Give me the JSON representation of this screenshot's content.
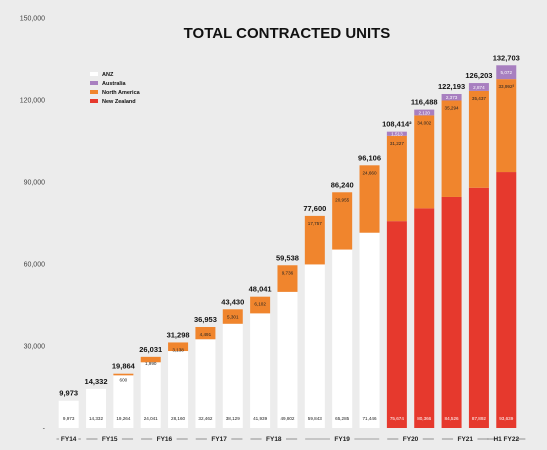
{
  "chart_data": {
    "type": "bar",
    "stacked": true,
    "title": "TOTAL CONTRACTED UNITS",
    "ylim": [
      0,
      150000
    ],
    "yticks": [
      0,
      30000,
      60000,
      90000,
      120000,
      150000
    ],
    "ytick_labels": [
      "-",
      "30,000",
      "60,000",
      "90,000",
      "120,000",
      "150,000"
    ],
    "legend_position": "top-left",
    "colors": {
      "ANZ": "#ffffff",
      "Australia": "#a87fc0",
      "North America": "#f0852d",
      "New Zealand": "#e6392d"
    },
    "series_order": [
      "ANZ",
      "New Zealand",
      "North America",
      "Australia"
    ],
    "legend": [
      "ANZ",
      "Australia",
      "North America",
      "New Zealand"
    ],
    "bars": [
      {
        "total": "9,973",
        "segments": {
          "ANZ": 9973
        },
        "labels": {
          "ANZ": "9,973"
        }
      },
      {
        "total": "14,332",
        "segments": {
          "ANZ": 14332
        },
        "labels": {
          "ANZ": "14,332"
        }
      },
      {
        "total": "19,864",
        "segments": {
          "ANZ": 19264,
          "North America": 600
        },
        "labels": {
          "ANZ": "19,264",
          "North America": "600"
        }
      },
      {
        "total": "26,031",
        "segments": {
          "ANZ": 24041,
          "North America": 1990
        },
        "labels": {
          "ANZ": "24,041",
          "North America": "1,990"
        }
      },
      {
        "total": "31,298",
        "segments": {
          "ANZ": 28160,
          "North America": 3138
        },
        "labels": {
          "ANZ": "28,160",
          "North America": "3,138"
        }
      },
      {
        "total": "36,953",
        "segments": {
          "ANZ": 32462,
          "North America": 4491
        },
        "labels": {
          "ANZ": "32,462",
          "North America": "4,491"
        }
      },
      {
        "total": "43,430",
        "segments": {
          "ANZ": 38129,
          "North America": 5301
        },
        "labels": {
          "ANZ": "38,129",
          "North America": "5,301"
        }
      },
      {
        "total": "48,041",
        "segments": {
          "ANZ": 41939,
          "North America": 6102
        },
        "labels": {
          "ANZ": "41,939",
          "North America": "6,102"
        }
      },
      {
        "total": "59,538",
        "segments": {
          "ANZ": 49802,
          "North America": 9736
        },
        "labels": {
          "ANZ": "49,802",
          "North America": "9,736"
        }
      },
      {
        "total": "77,600",
        "segments": {
          "ANZ": 59843,
          "North America": 17757
        },
        "labels": {
          "ANZ": "59,843",
          "North America": "17,757"
        }
      },
      {
        "total": "86,240",
        "segments": {
          "ANZ": 65285,
          "North America": 20955
        },
        "labels": {
          "ANZ": "65,285",
          "North America": "20,955"
        }
      },
      {
        "total": "96,106",
        "segments": {
          "ANZ": 71446,
          "North America": 24660
        },
        "labels": {
          "ANZ": "71,446",
          "North America": "24,660"
        }
      },
      {
        "total": "108,414²",
        "segments": {
          "New Zealand": 75674,
          "North America": 31227,
          "Australia": 1513
        },
        "labels": {
          "New Zealand": "75,674",
          "North America": "31,227",
          "Australia": "1,513"
        }
      },
      {
        "total": "116,488",
        "segments": {
          "New Zealand": 80366,
          "North America": 34002,
          "Australia": 2120
        },
        "labels": {
          "New Zealand": "80,366",
          "North America": "34,002",
          "Australia": "2,120"
        }
      },
      {
        "total": "122,193",
        "segments": {
          "New Zealand": 84526,
          "North America": 35294,
          "Australia": 2373
        },
        "labels": {
          "New Zealand": "84,526",
          "North America": "35,294",
          "Australia": "2,373"
        }
      },
      {
        "total": "126,203",
        "segments": {
          "New Zealand": 87892,
          "North America": 35437,
          "Australia": 2874
        },
        "labels": {
          "New Zealand": "87,892",
          "North America": "35,437",
          "Australia": "2,874"
        }
      },
      {
        "total": "132,703",
        "segments": {
          "New Zealand": 93639,
          "North America": 33992,
          "Australia": 5072
        },
        "labels": {
          "New Zealand": "93,639",
          "North America": "33,992³",
          "Australia": "5,072"
        }
      }
    ],
    "x_groups": [
      {
        "label": "FY14",
        "bars": [
          0
        ]
      },
      {
        "label": "FY15",
        "bars": [
          1,
          2
        ]
      },
      {
        "label": "FY16",
        "bars": [
          3,
          4
        ]
      },
      {
        "label": "FY17",
        "bars": [
          5,
          6
        ]
      },
      {
        "label": "FY18",
        "bars": [
          7,
          8
        ]
      },
      {
        "label": "FY19",
        "bars": [
          9,
          10,
          11
        ]
      },
      {
        "label": "FY20",
        "bars": [
          12,
          13
        ]
      },
      {
        "label": "FY21",
        "bars": [
          14,
          15
        ]
      },
      {
        "label": "H1 FY22",
        "bars": [
          16
        ]
      }
    ]
  }
}
